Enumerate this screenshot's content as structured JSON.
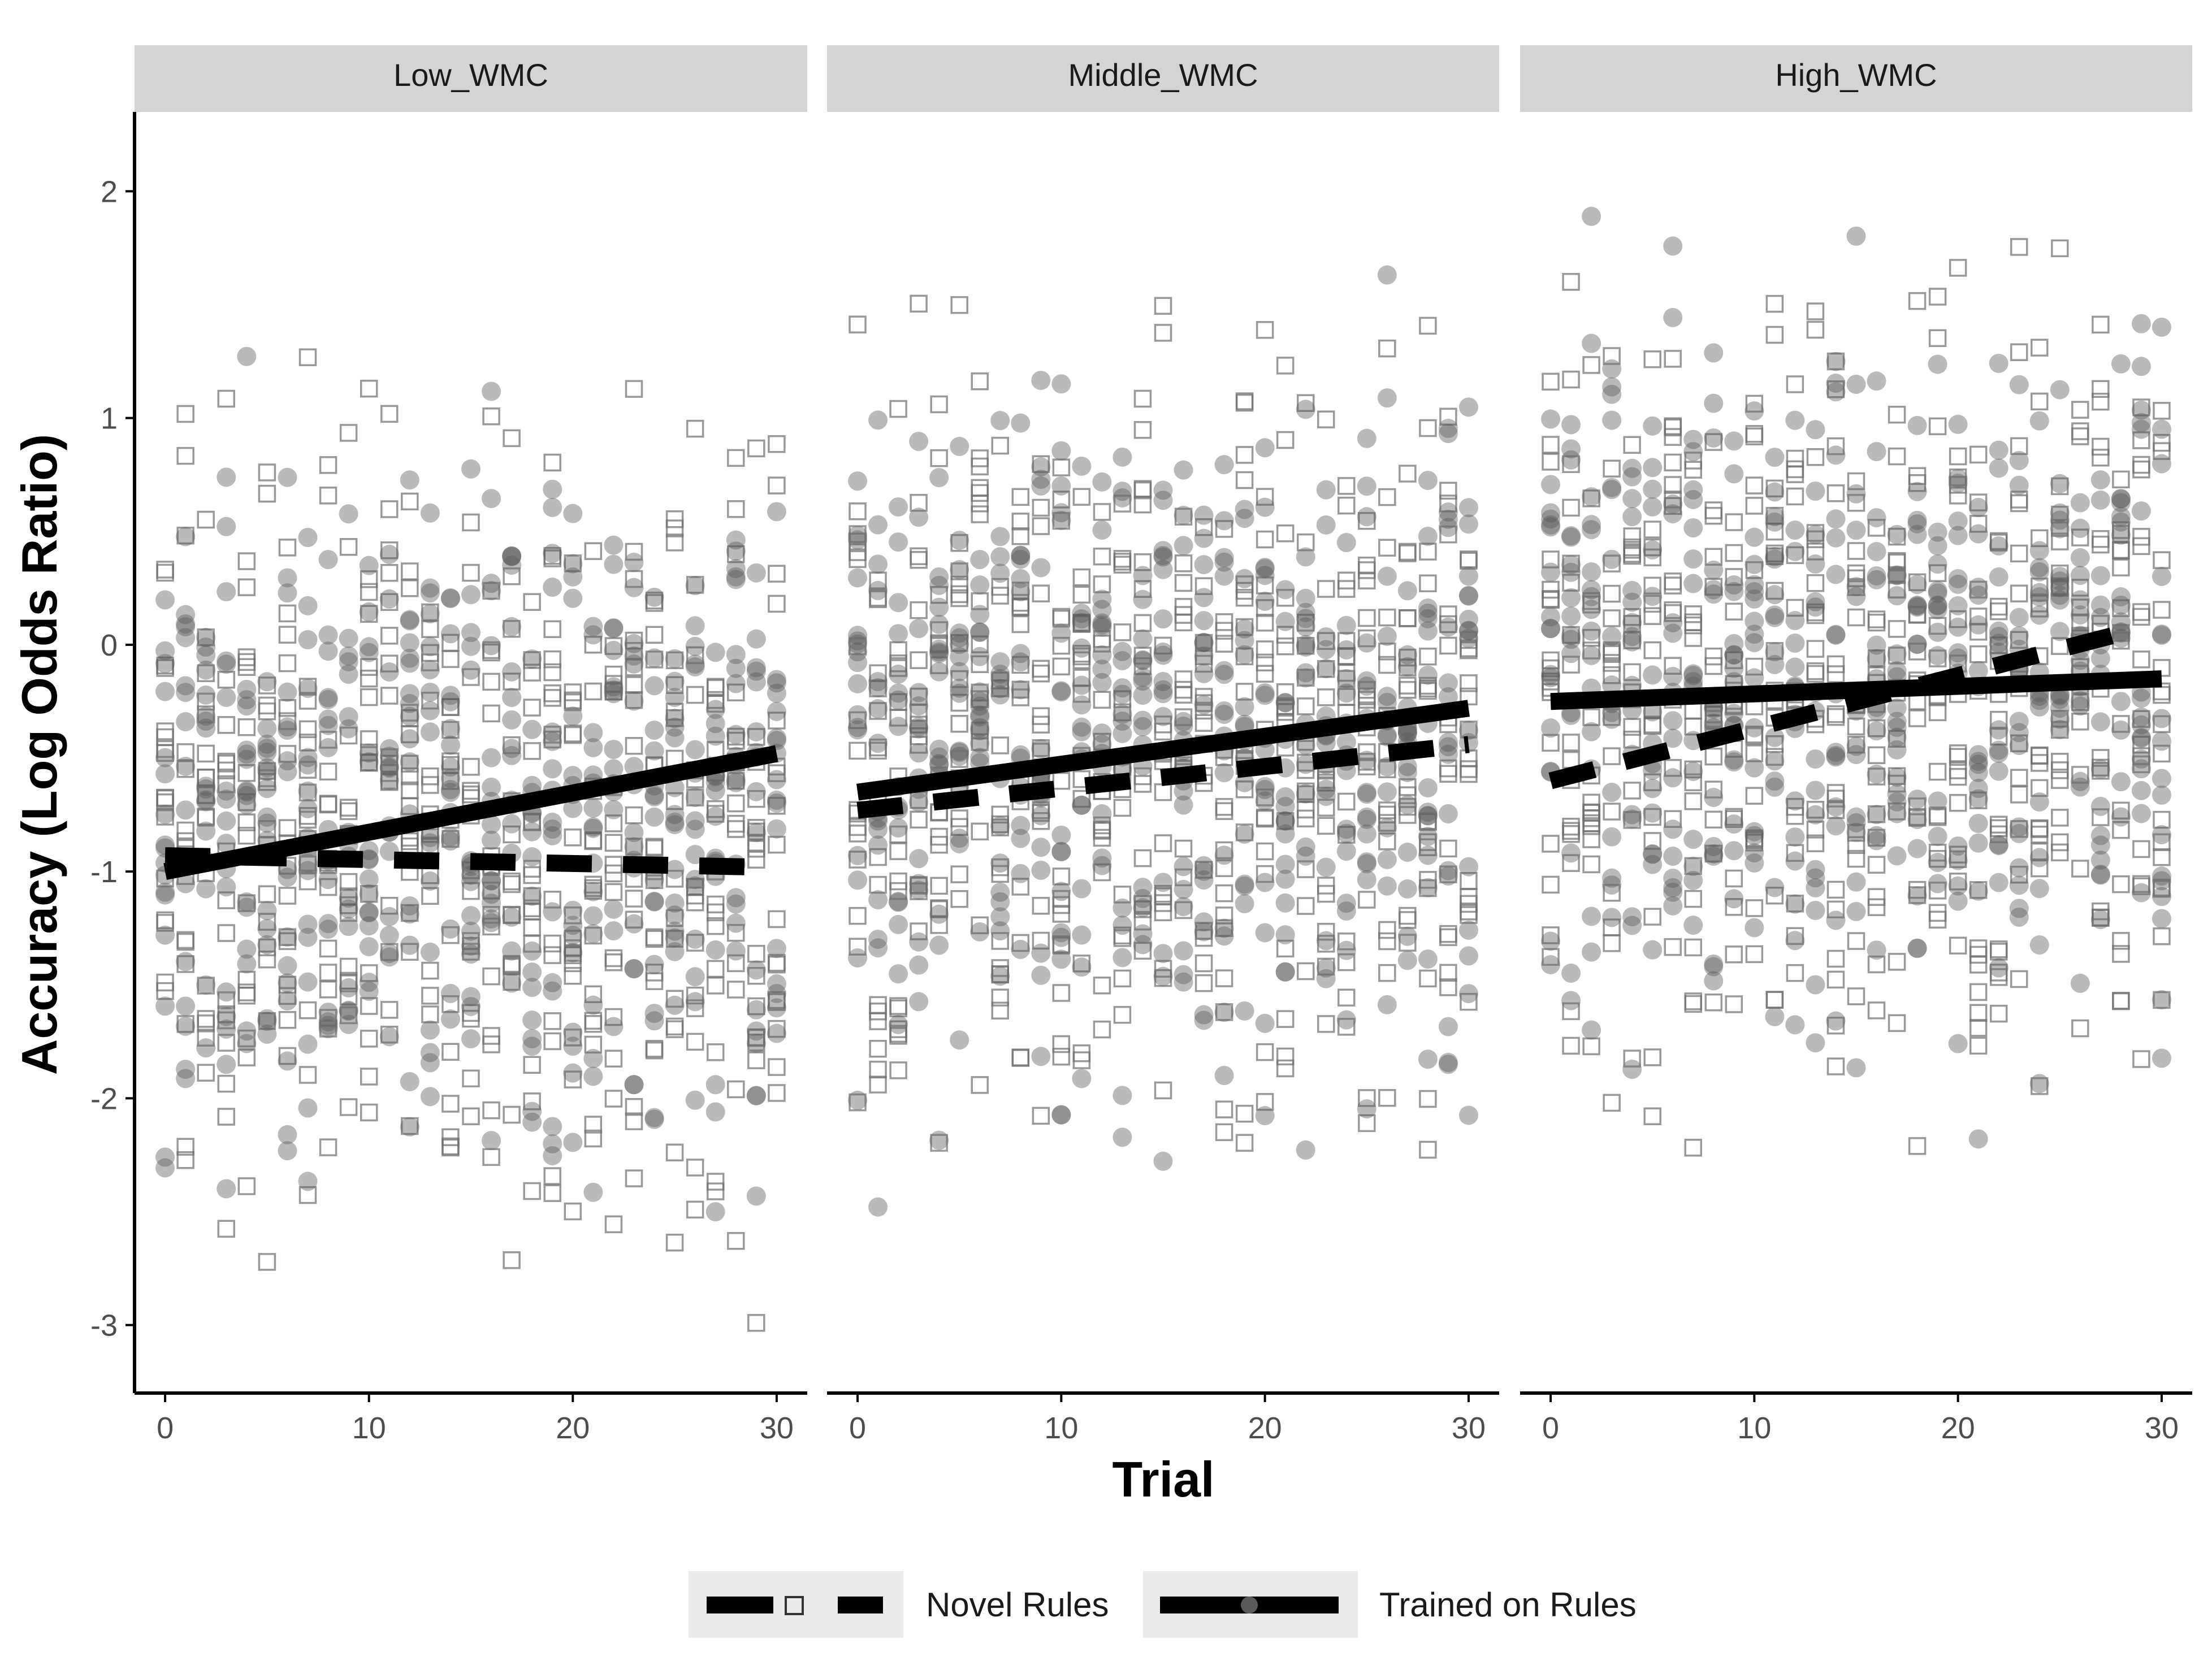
{
  "chart_data": {
    "type": "scatter",
    "xlabel": "Trial",
    "ylabel": "Accuracy (Log Odds Ratio)",
    "xlim": [
      -1.5,
      31.5
    ],
    "ylim": [
      -3.3,
      2.35
    ],
    "x_ticks": [
      0,
      10,
      20,
      30
    ],
    "y_ticks": [
      -3,
      -2,
      -1,
      0,
      1,
      2
    ],
    "grid": false,
    "legend_position": "bottom",
    "panels": [
      {
        "label": "Low_WMC",
        "fits": {
          "Trained on Rules": {
            "x": [
              0,
              30
            ],
            "y": [
              -1.0,
              -0.48
            ]
          },
          "Novel Rules": {
            "x": [
              0,
              29
            ],
            "y": [
              -0.93,
              -0.98
            ]
          }
        },
        "points": {
          "y_min": -3.03,
          "y_max": 1.28,
          "center": -0.8
        }
      },
      {
        "label": "Middle_WMC",
        "fits": {
          "Trained on Rules": {
            "x": [
              0,
              30
            ],
            "y": [
              -0.65,
              -0.28
            ]
          },
          "Novel Rules": {
            "x": [
              0,
              30
            ],
            "y": [
              -0.73,
              -0.44
            ]
          }
        },
        "points": {
          "y_min": -2.55,
          "y_max": 1.74,
          "center": -0.4
        }
      },
      {
        "label": "High_WMC",
        "fits": {
          "Trained on Rules": {
            "x": [
              0,
              30
            ],
            "y": [
              -0.25,
              -0.15
            ]
          },
          "Novel Rules": {
            "x": [
              0,
              28
            ],
            "y": [
              -0.6,
              0.05
            ]
          }
        },
        "points": {
          "y_min": -2.25,
          "y_max": 2.08,
          "center": -0.15
        }
      }
    ],
    "series": [
      {
        "name": "Novel Rules",
        "line": "dashed",
        "marker": "open-square"
      },
      {
        "name": "Trained on Rules",
        "line": "solid",
        "marker": "filled-circle"
      }
    ]
  },
  "colors": {
    "strip": "#d4d4d4",
    "axis": "#000000",
    "line": "#000000",
    "circle_fill": "#5a5a5a",
    "square_stroke": "#6e6e6e",
    "legend_key": "#ebebeb",
    "tick_text": "#4d4d4d"
  }
}
